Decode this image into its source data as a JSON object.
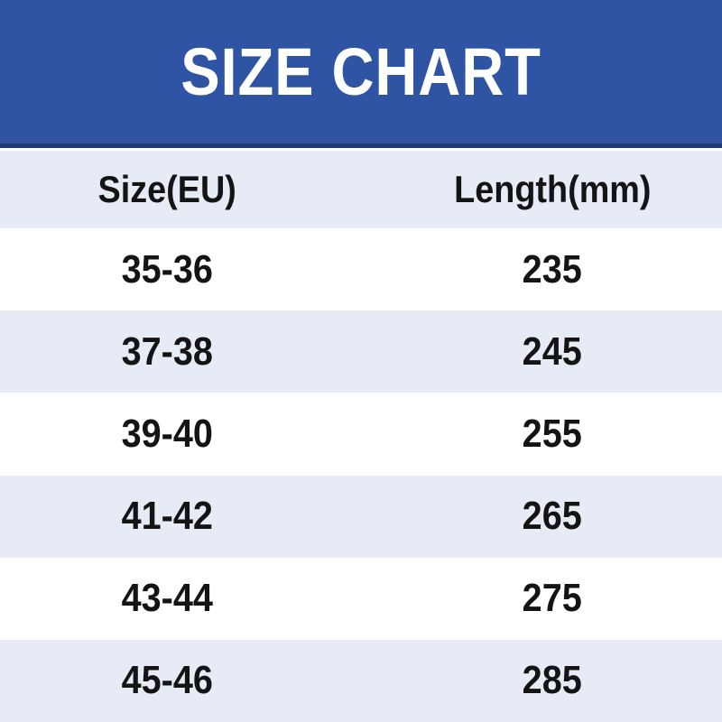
{
  "chart_data": {
    "type": "table",
    "title": "SIZE CHART",
    "columns": [
      "Size(EU)",
      "Length(mm)"
    ],
    "rows": [
      [
        "35-36",
        "235"
      ],
      [
        "37-38",
        "245"
      ],
      [
        "39-40",
        "255"
      ],
      [
        "41-42",
        "265"
      ],
      [
        "43-44",
        "275"
      ],
      [
        "45-46",
        "285"
      ]
    ],
    "layout_hints": {
      "row_striping": "white / lavender alternating, header row lavender",
      "alignment": "both columns center-aligned"
    }
  },
  "colors": {
    "banner_bg": "#2E54A3",
    "banner_border": "#1F3B6E",
    "row_alt": "#E7EBF6",
    "row_bg": "#FFFFFF",
    "title_color": "#FFFFFF",
    "text_color": "#141414"
  }
}
